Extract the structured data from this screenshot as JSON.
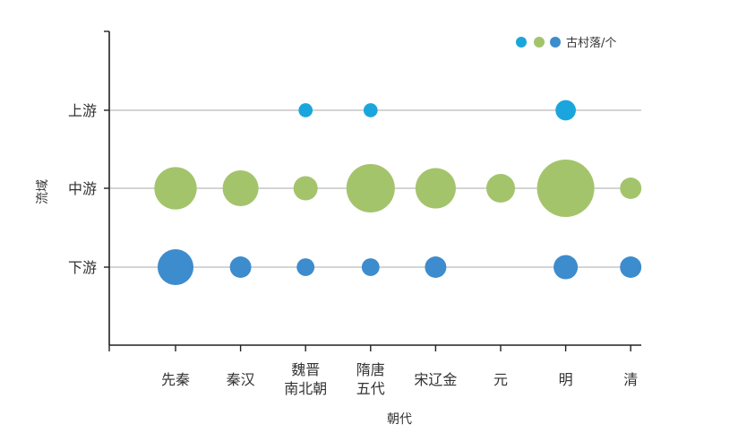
{
  "chart_data": {
    "type": "scatter",
    "xlabel": "朝代",
    "ylabel": "流域",
    "categories_x": [
      [
        "先秦"
      ],
      [
        "秦汉"
      ],
      [
        "魏晋",
        "南北朝"
      ],
      [
        "隋唐",
        "五代"
      ],
      [
        "宋辽金"
      ],
      [
        "元"
      ],
      [
        "明"
      ],
      [
        "清"
      ]
    ],
    "categories_y": [
      "上游",
      "中游",
      "下游"
    ],
    "legend": {
      "label": "古村落/个",
      "placement": "top-right",
      "colors": [
        "#1aa6dc",
        "#a4c46c",
        "#3d8ccd"
      ]
    },
    "series": [
      {
        "region": "上游",
        "color": "#1aa6dc",
        "values": [
          0,
          0,
          1,
          1,
          0,
          0,
          5,
          0
        ]
      },
      {
        "region": "中游",
        "color": "#a4c46c",
        "values": [
          43,
          28,
          9,
          60,
          38,
          15,
          90,
          6
        ]
      },
      {
        "region": "下游",
        "color": "#3d8ccd",
        "values": [
          28,
          6,
          3,
          3,
          6,
          0,
          9,
          6
        ]
      }
    ],
    "grid": {
      "horizontal": true,
      "vertical": false
    }
  }
}
